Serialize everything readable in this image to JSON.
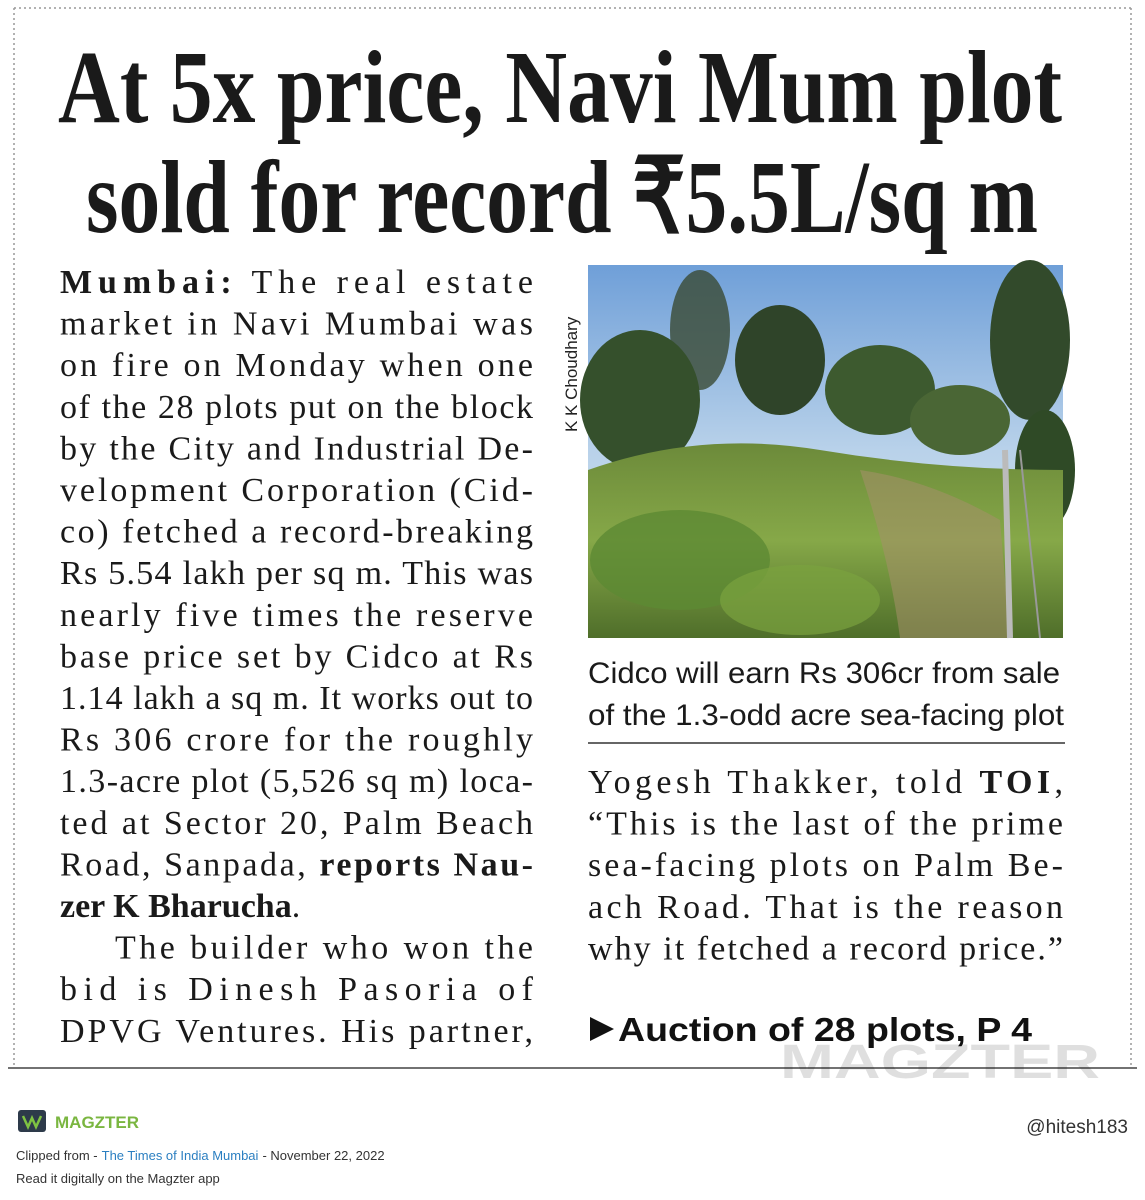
{
  "headline": [
    "At 5x price, Navi Mum plot",
    "sold for record ₹5.5L/sq m"
  ],
  "left_column": {
    "paragraphs": [
      [
        [
          {
            "text": "Mumbai:",
            "bold": true
          },
          {
            "text": " The real estate"
          }
        ],
        [
          {
            "text": "market in Navi Mumbai was"
          }
        ],
        [
          {
            "text": "on fire on Monday when one"
          }
        ],
        [
          {
            "text": "of the 28 plots put on the block"
          }
        ],
        [
          {
            "text": "by the City and Industrial De-"
          }
        ],
        [
          {
            "text": "velopment Corporation (Cid-"
          }
        ],
        [
          {
            "text": "co) fetched a record-breaking"
          }
        ],
        [
          {
            "text": "Rs 5.54 lakh per sq m. This was"
          }
        ],
        [
          {
            "text": "nearly five times the reserve"
          }
        ],
        [
          {
            "text": "base price set by Cidco at Rs"
          }
        ],
        [
          {
            "text": "1.14 lakh a sq m. It works out to"
          }
        ],
        [
          {
            "text": "Rs 306 crore for the roughly"
          }
        ],
        [
          {
            "text": "1.3-acre plot (5,526 sq m) loca-"
          }
        ],
        [
          {
            "text": "ted at Sector 20, Palm Beach"
          }
        ],
        [
          {
            "text": "Road, Sanpada, "
          },
          {
            "text": "reports Nau-",
            "bold": true
          }
        ],
        [
          {
            "text": "zer K Bharucha",
            "bold": true
          },
          {
            "text": "."
          }
        ]
      ],
      [
        [
          {
            "text": "The builder who won the"
          }
        ],
        [
          {
            "text": "bid is Dinesh Pasoria of"
          }
        ],
        [
          {
            "text": "DPVG Ventures. His partner,"
          }
        ]
      ]
    ]
  },
  "photo": {
    "credit": "K K Choudhary",
    "caption": [
      "Cidco will earn Rs 306cr from sale",
      "of the 1.3-odd acre sea-facing plot"
    ]
  },
  "right_column": {
    "paragraphs": [
      [
        [
          {
            "text": "Yogesh Thakker, told "
          },
          {
            "text": "TOI",
            "bold": true
          },
          {
            "text": ","
          }
        ],
        [
          {
            "text": "“This is the last of the prime"
          }
        ],
        [
          {
            "text": "sea-facing plots on Palm Be-"
          }
        ],
        [
          {
            "text": "ach Road. That is the reason"
          }
        ],
        [
          {
            "text": "why it fetched a record price.”"
          }
        ]
      ]
    ]
  },
  "jump": "Auction of 28 plots, P 4",
  "watermark": "MAGZTER",
  "footer": {
    "brand": "MAGZTER",
    "clipped_label": "Clipped from -",
    "publication": "The Times of India Mumbai",
    "date": "- November 22, 2022",
    "cta": "Read it digitally on the Magzter app",
    "handle": "@hitesh183"
  }
}
